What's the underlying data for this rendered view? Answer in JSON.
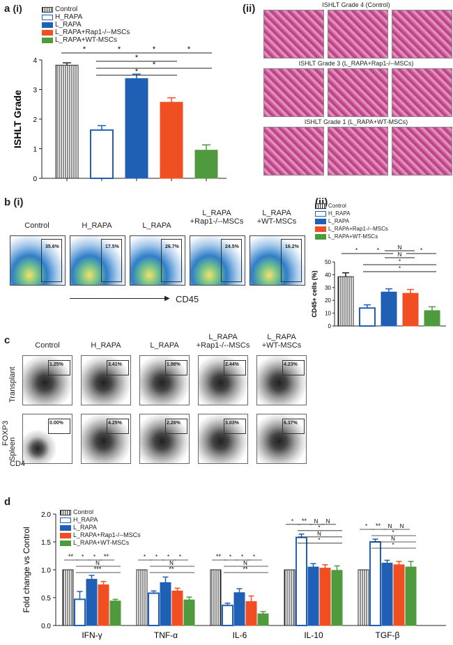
{
  "panel_a": {
    "label": "a",
    "sub_i": "(i)",
    "sub_ii": "(ii)",
    "histology_titles": [
      "ISHLT Grade 4 (Control)",
      "ISHLT Grade 3 (L_RAPA+Rap1-/--MSCs)",
      "ISHLT Grade 1 (L_RAPA+WT-MSCs)"
    ]
  },
  "panel_b": {
    "label": "b",
    "sub_i": "(i)",
    "sub_ii": "(ii)",
    "column_labels": [
      "Control",
      "H_RAPA",
      "L_RAPA",
      "L_RAPA\n+Rap1-/--MSCs",
      "L_RAPA\n+WT-MSCs"
    ],
    "gate_percents": [
      "35.6%",
      "17.5%",
      "26.7%",
      "24.5%",
      "16.2%"
    ],
    "x_axis_marker": "CD45"
  },
  "panel_c": {
    "label": "c",
    "column_labels": [
      "Control",
      "H_RAPA",
      "L_RAPA",
      "L_RAPA\n+Rap1-/--MSCs",
      "L_RAPA\n+WT-MSCs"
    ],
    "row_labels": [
      "Transplant",
      "Spleen"
    ],
    "transplant_percents": [
      "1.25%",
      "3.41%",
      "1.98%",
      "2.44%",
      "4.23%"
    ],
    "spleen_percents": [
      "0.00%",
      "4.25%",
      "2.26%",
      "3.03%",
      "6.37%"
    ],
    "y_marker": "FOXP3",
    "x_marker": "CD4"
  },
  "panel_d": {
    "label": "d"
  },
  "legend": [
    "Control",
    "H_RAPA",
    "L_RAPA",
    "L_RAPA+Rap1-/--MSCs",
    "L_RAPA+WT-MSCs"
  ],
  "colors": {
    "control": "#ffffff",
    "h_rapa": "#ffffff",
    "l_rapa": "#1f5fb4",
    "rap1": "#f04e23",
    "wt": "#4f9a3d",
    "h_rapa_border": "#1f5fb4"
  },
  "chart_data": [
    {
      "type": "bar",
      "id": "a_i",
      "ylabel": "ISHLT Grade",
      "ylim": [
        0,
        4
      ],
      "yticks": [
        "0",
        "1",
        "2",
        "3",
        "4"
      ],
      "categories": [
        "Control",
        "H_RAPA",
        "L_RAPA",
        "L_RAPA+Rap1-/--MSCs",
        "L_RAPA+WT-MSCs"
      ],
      "values": [
        3.82,
        1.63,
        3.37,
        2.57,
        0.95
      ],
      "errors": [
        0.08,
        0.15,
        0.15,
        0.15,
        0.18
      ],
      "significance": [
        "*",
        "*",
        "*",
        "*",
        "*",
        "*",
        "*"
      ]
    },
    {
      "type": "bar",
      "id": "b_ii",
      "ylabel": "CD45+ cells (%)",
      "ylim": [
        0,
        50
      ],
      "yticks": [
        "0",
        "10",
        "20",
        "30",
        "40",
        "50"
      ],
      "categories": [
        "Control",
        "H_RAPA",
        "L_RAPA",
        "L_RAPA+Rap1-/--MSCs",
        "L_RAPA+WT-MSCs"
      ],
      "values": [
        38.5,
        14.0,
        26.5,
        25.5,
        12.0
      ],
      "errors": [
        3.0,
        2.5,
        2.5,
        3.0,
        3.0
      ],
      "significance": [
        "*",
        "*",
        "N",
        "*",
        "N",
        "*",
        "*"
      ]
    },
    {
      "type": "bar",
      "id": "d",
      "ylabel": "Fold change vs Control",
      "ylim": [
        0,
        2.0
      ],
      "yticks": [
        "0.0",
        "0.5",
        "1.0",
        "1.5",
        "2.0"
      ],
      "categories": [
        "IFN-γ",
        "TNF-α",
        "IL-6",
        "IL-10",
        "TGF-β"
      ],
      "series": [
        {
          "name": "Control",
          "values": [
            1.0,
            1.0,
            1.0,
            1.0,
            1.0
          ],
          "errors": [
            0,
            0,
            0,
            0,
            0
          ]
        },
        {
          "name": "H_RAPA",
          "values": [
            0.47,
            0.58,
            0.36,
            1.58,
            1.5
          ],
          "errors": [
            0.14,
            0.04,
            0.04,
            0.06,
            0.05
          ]
        },
        {
          "name": "L_RAPA",
          "values": [
            0.83,
            0.77,
            0.59,
            1.05,
            1.12
          ],
          "errors": [
            0.07,
            0.1,
            0.07,
            0.06,
            0.05
          ]
        },
        {
          "name": "L_RAPA+Rap1-/--MSCs",
          "values": [
            0.73,
            0.62,
            0.43,
            1.03,
            1.09
          ],
          "errors": [
            0.06,
            0.05,
            0.1,
            0.06,
            0.06
          ]
        },
        {
          "name": "L_RAPA+WT-MSCs",
          "values": [
            0.44,
            0.46,
            0.21,
            0.99,
            1.05
          ],
          "errors": [
            0.03,
            0.05,
            0.04,
            0.08,
            0.1
          ]
        }
      ],
      "significance_by_group": [
        [
          "**",
          "*",
          "*",
          "**",
          "N",
          "***"
        ],
        [
          "*",
          "*",
          "*",
          "*",
          "N",
          "**"
        ],
        [
          "**",
          "*",
          "*",
          "*",
          "N",
          "**"
        ],
        [
          "*",
          "**",
          "N",
          "N",
          "*",
          "N",
          "*"
        ],
        [
          "*",
          "**",
          "N",
          "N",
          "*",
          "N",
          "*"
        ]
      ]
    }
  ]
}
